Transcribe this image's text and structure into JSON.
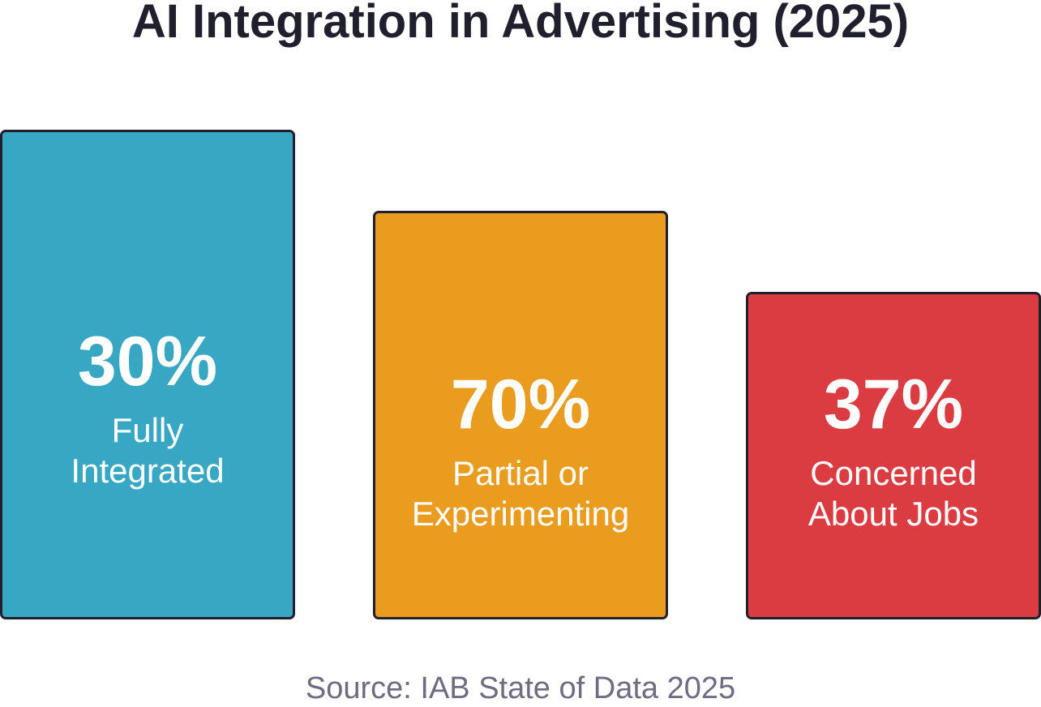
{
  "chart_data": {
    "type": "bar",
    "title": "AI Integration in Advertising (2025)",
    "categories": [
      "Fully Integrated",
      "Partial or Experimenting",
      "Concerned About Jobs"
    ],
    "values": [
      30,
      70,
      37
    ],
    "unit": "%",
    "bars": [
      {
        "value_label": "30%",
        "label_lines": [
          "Fully",
          "Integrated"
        ],
        "color": "#37a7c3"
      },
      {
        "value_label": "70%",
        "label_lines": [
          "Partial or",
          "Experimenting"
        ],
        "color": "#ea9c1f"
      },
      {
        "value_label": "37%",
        "label_lines": [
          "Concerned",
          "About Jobs"
        ],
        "color": "#db3c41"
      }
    ],
    "source": "Source: IAB State of Data 2025"
  },
  "colors": {
    "text_dark": "#1f1f2e",
    "source_text": "#6e6b82",
    "card_border": "#1f1f2e"
  }
}
